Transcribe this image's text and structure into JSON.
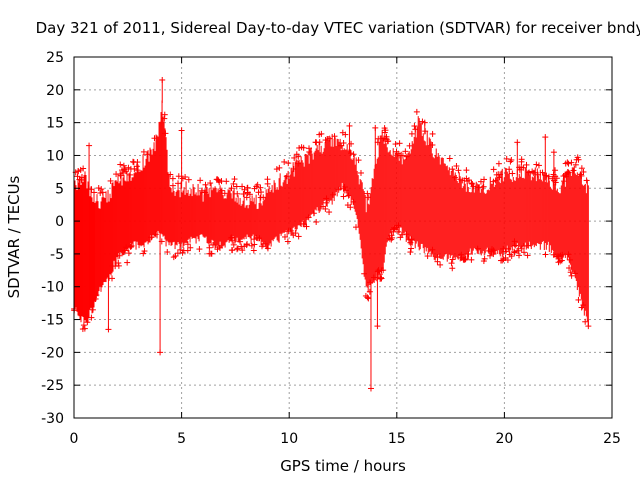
{
  "chart_data": {
    "type": "scatter",
    "title": "Day 321 of 2011, Sidereal Day-to-day VTEC variation (SDTVAR) for receiver bndy",
    "xlabel": "GPS time / hours",
    "ylabel": "SDTVAR / TECUs",
    "xlim": [
      0,
      25
    ],
    "ylim": [
      -30,
      25
    ],
    "xticks": [
      0,
      5,
      10,
      15,
      20,
      25
    ],
    "yticks": [
      -30,
      -25,
      -20,
      -15,
      -10,
      -5,
      0,
      5,
      10,
      15,
      20,
      25
    ],
    "grid": true,
    "marker": "+",
    "color": "#ff0000",
    "series": [
      {
        "name": "SDTVAR",
        "envelope": {
          "x": [
            0.0,
            0.3,
            0.5,
            0.8,
            1.2,
            1.6,
            2.0,
            2.4,
            2.8,
            3.2,
            3.5,
            3.8,
            4.1,
            4.5,
            5.0,
            5.5,
            6.0,
            6.5,
            7.0,
            7.5,
            8.0,
            8.5,
            9.0,
            9.5,
            10.0,
            10.5,
            11.0,
            11.5,
            12.0,
            12.5,
            13.0,
            13.3,
            13.6,
            14.0,
            14.3,
            14.6,
            15.0,
            15.5,
            16.0,
            16.5,
            17.0,
            17.5,
            18.0,
            18.5,
            19.0,
            19.5,
            20.0,
            20.5,
            21.0,
            21.5,
            22.0,
            22.5,
            23.0,
            23.3,
            23.6,
            23.9
          ],
          "upper": [
            5,
            6,
            7,
            4,
            3,
            4,
            6,
            7,
            7,
            9,
            10,
            12,
            18,
            4,
            5,
            5,
            4,
            5,
            4,
            4,
            3,
            3,
            4,
            6,
            7,
            9,
            10,
            11,
            12.5,
            11,
            10,
            6,
            2,
            8,
            13,
            11,
            10,
            9,
            15,
            12,
            9,
            7,
            6,
            5,
            5,
            6,
            7,
            7,
            7,
            7,
            6,
            5,
            7,
            8,
            6,
            5
          ],
          "lower": [
            -12,
            -14,
            -15,
            -13,
            -10,
            -8,
            -5,
            -4,
            -3,
            -3,
            -2,
            -1,
            -2,
            -3,
            -3,
            -2,
            -2,
            -3,
            -3,
            -2,
            -2,
            -2,
            -3,
            -2,
            -1,
            0,
            1,
            3,
            4,
            6,
            3,
            -2,
            -10,
            -8,
            -7,
            -2,
            0,
            -2,
            -3,
            -4,
            -5,
            -5,
            -5,
            -4,
            -4,
            -4,
            -4,
            -3,
            -3,
            -3,
            -3,
            -5,
            -5,
            -8,
            -12,
            -15
          ]
        },
        "outliers": [
          {
            "x": 0.7,
            "y": 11.5
          },
          {
            "x": 1.6,
            "y": -16.5
          },
          {
            "x": 4.0,
            "y": -20
          },
          {
            "x": 4.1,
            "y": 21.5
          },
          {
            "x": 5.0,
            "y": 13.8
          },
          {
            "x": 12.8,
            "y": 14.5
          },
          {
            "x": 13.8,
            "y": -25.5
          },
          {
            "x": 14.0,
            "y": 14.2
          },
          {
            "x": 14.1,
            "y": -16
          },
          {
            "x": 16.3,
            "y": 15
          },
          {
            "x": 20.6,
            "y": 12
          },
          {
            "x": 21.9,
            "y": 12.8
          },
          {
            "x": 22.3,
            "y": 10.5
          },
          {
            "x": 23.9,
            "y": -16
          }
        ]
      }
    ]
  }
}
